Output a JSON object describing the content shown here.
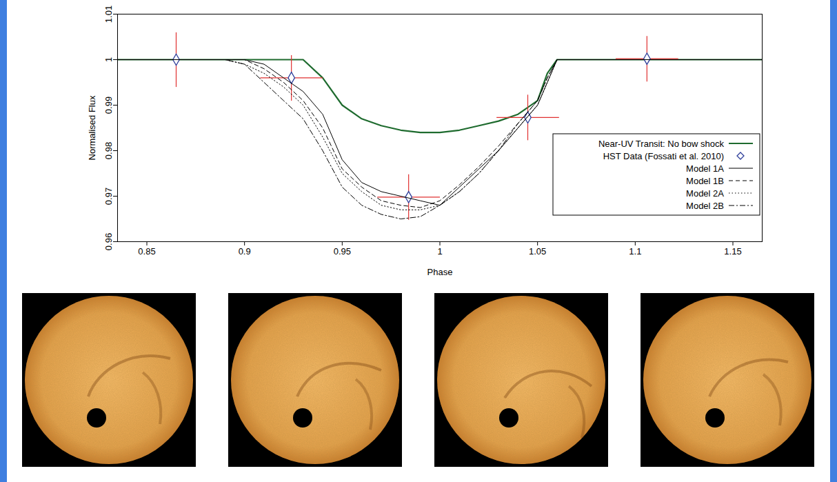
{
  "chart_data": {
    "type": "line",
    "xlabel": "Phase",
    "ylabel": "Normalised Flux",
    "xlim": [
      0.835,
      1.165
    ],
    "ylim": [
      0.96,
      1.01
    ],
    "xticks": [
      0.85,
      0.9,
      0.95,
      1,
      1.05,
      1.1,
      1.15
    ],
    "yticks": [
      0.96,
      0.97,
      0.98,
      0.99,
      1,
      1.01
    ],
    "legend": "lower right",
    "x": [
      0.835,
      0.88,
      0.89,
      0.9,
      0.91,
      0.92,
      0.93,
      0.94,
      0.95,
      0.96,
      0.97,
      0.98,
      0.99,
      1.0,
      1.01,
      1.02,
      1.03,
      1.04,
      1.05,
      1.055,
      1.06,
      1.1,
      1.165
    ],
    "series": [
      {
        "name": "Near-UV Transit: No bow shock",
        "type": "line",
        "color": "#1e6b2e",
        "line_style": "solid",
        "values": [
          1,
          1,
          1,
          1,
          1,
          1,
          1,
          0.996,
          0.99,
          0.987,
          0.9855,
          0.9845,
          0.984,
          0.984,
          0.9845,
          0.9855,
          0.9865,
          0.988,
          0.991,
          0.997,
          1,
          1,
          1
        ]
      },
      {
        "name": "HST Data (Fossati et al. 2010)",
        "type": "scatter",
        "color": "#2f3f9a",
        "marker": "diamond",
        "x": [
          0.865,
          0.924,
          0.984,
          1.045,
          1.106
        ],
        "values": [
          1.0,
          0.996,
          0.9698,
          0.9873,
          1.0002
        ],
        "x_err": [
          0.01,
          0.016,
          0.016,
          0.016,
          0.016
        ],
        "y_err": [
          0.006,
          0.005,
          0.005,
          0.005,
          0.005
        ]
      },
      {
        "name": "Model 1A",
        "type": "line",
        "color": "#000000",
        "line_style": "solid",
        "values": [
          1,
          1,
          1,
          1,
          0.999,
          0.996,
          0.993,
          0.988,
          0.978,
          0.973,
          0.971,
          0.97,
          0.969,
          0.968,
          0.972,
          0.976,
          0.98,
          0.985,
          0.99,
          0.995,
          1,
          1,
          1
        ]
      },
      {
        "name": "Model 1B",
        "type": "line",
        "color": "#000000",
        "line_style": "dashed",
        "values": [
          1,
          1,
          1,
          1,
          0.998,
          0.995,
          0.991,
          0.985,
          0.976,
          0.972,
          0.969,
          0.968,
          0.9675,
          0.969,
          0.9725,
          0.9765,
          0.981,
          0.986,
          0.991,
          0.996,
          1,
          1,
          1
        ]
      },
      {
        "name": "Model 2A",
        "type": "line",
        "color": "#000000",
        "line_style": "dotted",
        "values": [
          1,
          1,
          1,
          0.999,
          0.997,
          0.994,
          0.99,
          0.983,
          0.975,
          0.971,
          0.968,
          0.967,
          0.967,
          0.968,
          0.971,
          0.975,
          0.98,
          0.985,
          0.99,
          0.995,
          1,
          1,
          1
        ]
      },
      {
        "name": "Model 2B",
        "type": "line",
        "color": "#000000",
        "line_style": "dashdot",
        "values": [
          1,
          1,
          1,
          0.999,
          0.995,
          0.991,
          0.987,
          0.98,
          0.972,
          0.968,
          0.966,
          0.965,
          0.9655,
          0.968,
          0.971,
          0.975,
          0.98,
          0.986,
          0.991,
          0.996,
          1,
          1,
          1
        ]
      }
    ]
  }
}
